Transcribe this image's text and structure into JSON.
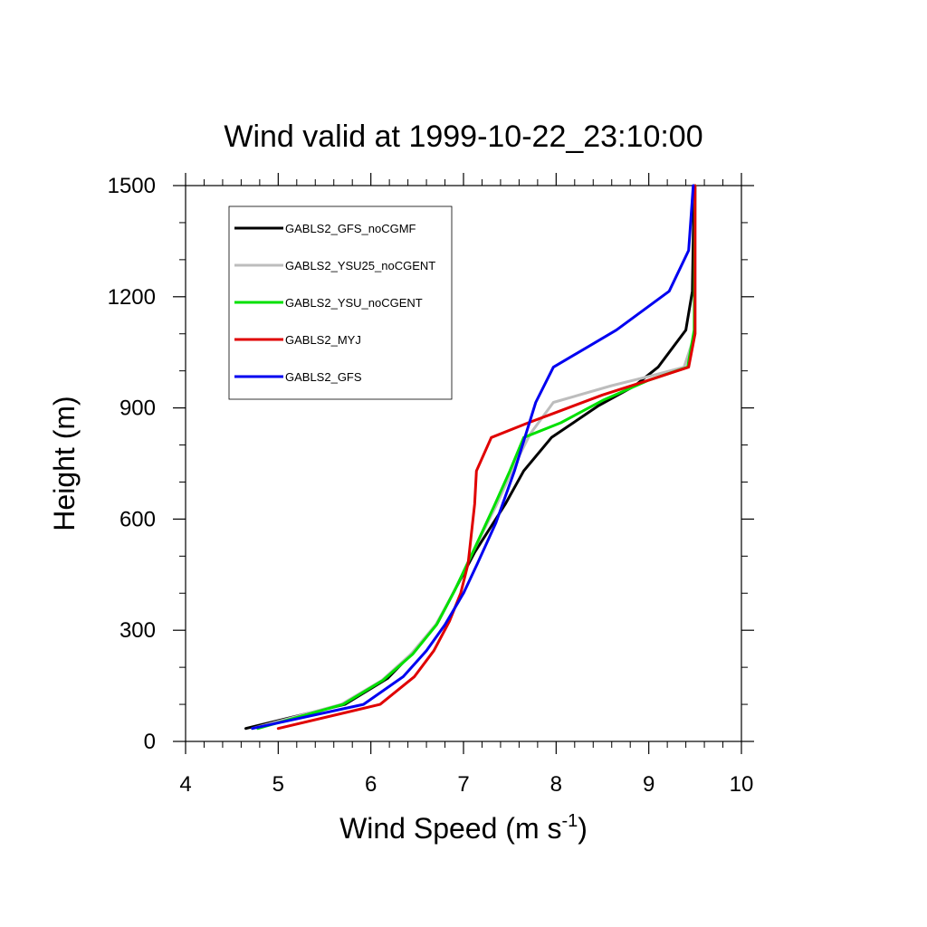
{
  "chart_data": {
    "type": "line",
    "title": "Wind valid at 1999-10-22_23:10:00",
    "xlabel": {
      "main": "Wind Speed (m s",
      "sup": "-1",
      "close": ")"
    },
    "ylabel": "Height (m)",
    "xlim": [
      4,
      10
    ],
    "ylim": [
      0,
      1500
    ],
    "xticks": [
      4,
      5,
      6,
      7,
      8,
      9,
      10
    ],
    "yticks": [
      0,
      300,
      600,
      900,
      1200,
      1500
    ],
    "x_minor_step": 0.2,
    "y_minor_step": 100,
    "grid": false,
    "legend_position": "top-left",
    "series": [
      {
        "name": "GABLS2_GFS_noCGMF",
        "color": "#000000",
        "points": [
          [
            4.65,
            35
          ],
          [
            5.72,
            100
          ],
          [
            6.18,
            170
          ],
          [
            6.47,
            245
          ],
          [
            6.72,
            320
          ],
          [
            6.92,
            415
          ],
          [
            7.12,
            510
          ],
          [
            7.45,
            640
          ],
          [
            7.65,
            730
          ],
          [
            7.95,
            820
          ],
          [
            8.45,
            905
          ],
          [
            8.85,
            960
          ],
          [
            9.1,
            1010
          ],
          [
            9.4,
            1110
          ],
          [
            9.47,
            1215
          ],
          [
            9.49,
            1500
          ]
        ]
      },
      {
        "name": "GABLS2_YSU25_noCGENT",
        "color": "#bdbdbd",
        "points": [
          [
            4.72,
            35
          ],
          [
            5.68,
            100
          ],
          [
            6.12,
            165
          ],
          [
            6.43,
            235
          ],
          [
            6.7,
            315
          ],
          [
            6.9,
            405
          ],
          [
            7.1,
            510
          ],
          [
            7.35,
            635
          ],
          [
            7.55,
            745
          ],
          [
            7.72,
            830
          ],
          [
            7.97,
            915
          ],
          [
            8.6,
            960
          ],
          [
            9.0,
            985
          ],
          [
            9.38,
            1010
          ],
          [
            9.5,
            1100
          ],
          [
            9.5,
            1500
          ]
        ]
      },
      {
        "name": "GABLS2_YSU_noCGENT",
        "color": "#00e000",
        "points": [
          [
            4.78,
            35
          ],
          [
            5.7,
            100
          ],
          [
            6.13,
            165
          ],
          [
            6.45,
            235
          ],
          [
            6.71,
            315
          ],
          [
            6.9,
            405
          ],
          [
            7.1,
            510
          ],
          [
            7.33,
            635
          ],
          [
            7.5,
            730
          ],
          [
            7.65,
            820
          ],
          [
            8.05,
            860
          ],
          [
            8.5,
            920
          ],
          [
            9.0,
            975
          ],
          [
            9.42,
            1010
          ],
          [
            9.49,
            1110
          ],
          [
            9.5,
            1500
          ]
        ]
      },
      {
        "name": "GABLS2_MYJ",
        "color": "#e00000",
        "points": [
          [
            5.0,
            35
          ],
          [
            6.1,
            100
          ],
          [
            6.47,
            175
          ],
          [
            6.68,
            245
          ],
          [
            6.85,
            325
          ],
          [
            6.97,
            400
          ],
          [
            7.05,
            480
          ],
          [
            7.12,
            640
          ],
          [
            7.14,
            730
          ],
          [
            7.3,
            820
          ],
          [
            7.7,
            860
          ],
          [
            7.97,
            885
          ],
          [
            8.5,
            935
          ],
          [
            9.0,
            975
          ],
          [
            9.43,
            1010
          ],
          [
            9.5,
            1100
          ],
          [
            9.5,
            1500
          ]
        ]
      },
      {
        "name": "GABLS2_GFS",
        "color": "#0000f0",
        "points": [
          [
            4.72,
            35
          ],
          [
            5.92,
            100
          ],
          [
            6.35,
            175
          ],
          [
            6.6,
            245
          ],
          [
            6.8,
            315
          ],
          [
            7.0,
            400
          ],
          [
            7.15,
            480
          ],
          [
            7.35,
            590
          ],
          [
            7.55,
            730
          ],
          [
            7.78,
            915
          ],
          [
            7.97,
            1010
          ],
          [
            8.65,
            1110
          ],
          [
            9.22,
            1215
          ],
          [
            9.43,
            1325
          ],
          [
            9.48,
            1500
          ]
        ]
      }
    ]
  }
}
